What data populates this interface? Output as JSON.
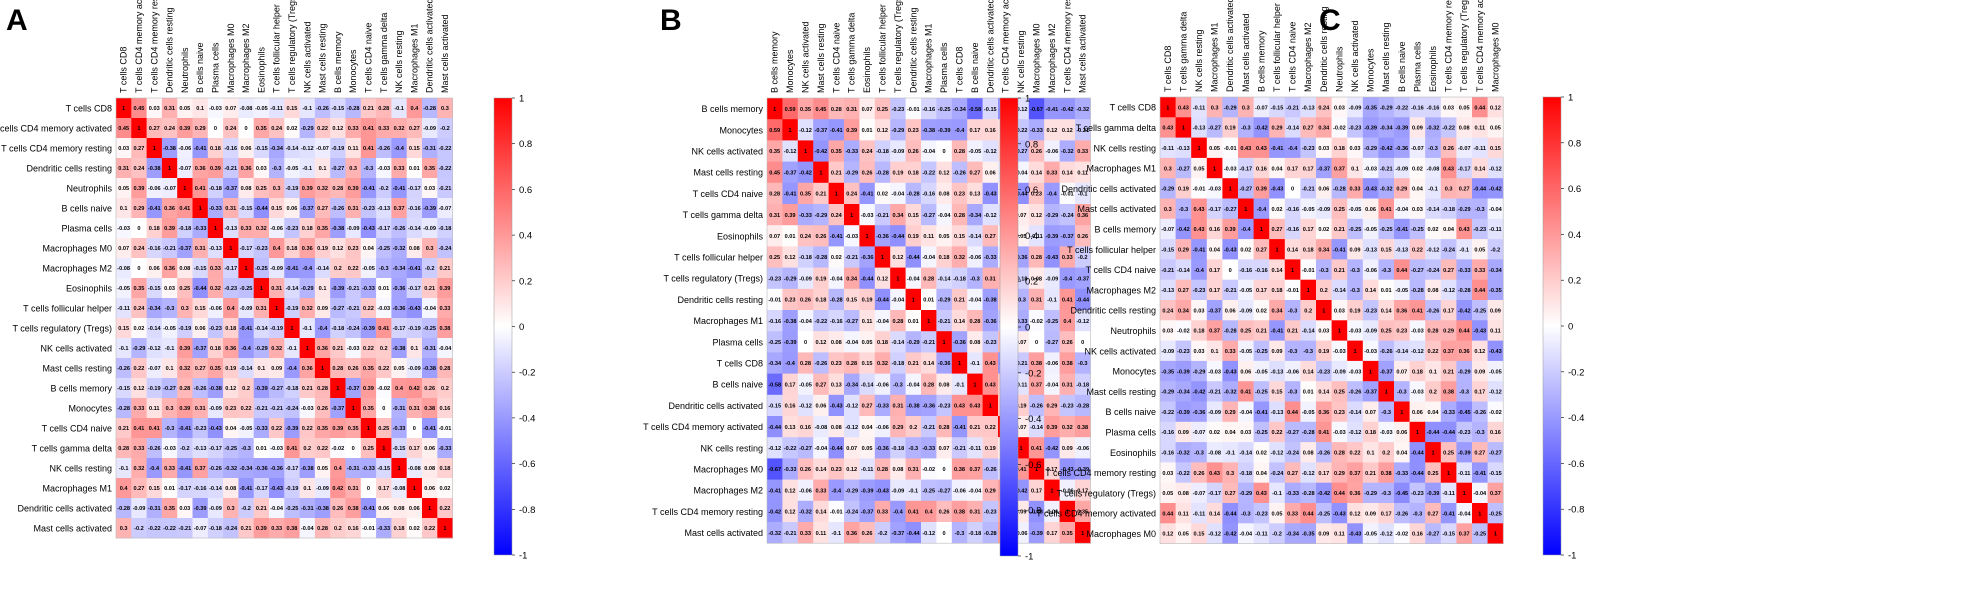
{
  "chart_data": [
    {
      "type": "heatmap",
      "panel_label": "A",
      "rows": [
        "T cells CD8",
        "T cells CD4 memory activated",
        "T cells CD4 memory resting",
        "Dendritic cells resting",
        "Neutrophils",
        "B cells naive",
        "Plasma cells",
        "Macrophages M0",
        "Macrophages M2",
        "Eosinophils",
        "T cells follicular helper",
        "T cells regulatory (Tregs)",
        "NK cells activated",
        "Mast cells resting",
        "B cells memory",
        "Monocytes",
        "T cells CD4 naive",
        "T cells gamma delta",
        "NK cells resting",
        "Macrophages M1",
        "Dendritic cells activated",
        "Mast cells activated"
      ],
      "columns": [
        "T cells CD8",
        "T cells CD4 memory activated",
        "T cells CD4 memory resting",
        "Dendritic cells resting",
        "Neutrophils",
        "B cells naive",
        "Plasma cells",
        "Macrophages M0",
        "Macrophages M2",
        "Eosinophils",
        "T cells follicular helper",
        "T cells regulatory (Tregs)",
        "NK cells activated",
        "Mast cells resting",
        "B cells memory",
        "Monocytes",
        "T cells CD4 naive",
        "T cells gamma delta",
        "NK cells resting",
        "Macrophages M1",
        "Dendritic cells activated",
        "Mast cells activated"
      ],
      "first_row": [
        1,
        0.45,
        0.03,
        0.31,
        0.05,
        0.1,
        -0.03,
        0.07,
        -0.08,
        -0.05,
        -0.11,
        0.15,
        -0.1,
        -0.26,
        -0.15,
        -0.28,
        0.21,
        0.28,
        -0.1,
        0.4,
        -0.28,
        0.3
      ],
      "colorbar": {
        "min": -1,
        "max": 1,
        "ticks": [
          "1",
          "0.8",
          "0.6",
          "0.4",
          "0.2",
          "0",
          "-0.2",
          "-0.4",
          "-0.6",
          "-0.8",
          "-1"
        ]
      }
    },
    {
      "type": "heatmap",
      "panel_label": "B",
      "rows": [
        "B cells memory",
        "Monocytes",
        "NK cells activated",
        "Mast cells resting",
        "T cells CD4 naive",
        "T cells gamma delta",
        "Eosinophils",
        "T cells follicular helper",
        "T cells regulatory (Tregs)",
        "Dendritic cells resting",
        "Macrophages M1",
        "Plasma cells",
        "T cells CD8",
        "B cells naive",
        "Dendritic cells activated",
        "T cells CD4 memory activated",
        "NK cells resting",
        "Macrophages M0",
        "Macrophages M2",
        "T cells CD4 memory resting",
        "Mast cells activated"
      ],
      "columns": [
        "B cells memory",
        "Monocytes",
        "NK cells activated",
        "Mast cells resting",
        "T cells CD4 naive",
        "T cells gamma delta",
        "Eosinophils",
        "T cells follicular helper",
        "T cells regulatory (Tregs)",
        "Dendritic cells resting",
        "Macrophages M1",
        "Plasma cells",
        "T cells CD8",
        "B cells naive",
        "Dendritic cells activated",
        "T cells CD4 memory activated",
        "NK cells resting",
        "Macrophages M0",
        "Macrophages M2",
        "T cells CD4 memory resting",
        "Mast cells activated"
      ],
      "first_row": [
        1,
        0.59,
        0.35,
        0.45,
        0.28,
        0.31,
        0.07,
        0.25,
        -0.23,
        -0.01,
        -0.16,
        -0.25,
        -0.34,
        -0.58,
        -0.15,
        -0.44,
        -0.12,
        -0.67,
        -0.41,
        -0.42,
        -0.32
      ],
      "colorbar": {
        "min": -1,
        "max": 1,
        "ticks": [
          "1",
          "0.8",
          "0.6",
          "0.4",
          "0.2",
          "0",
          "-0.2",
          "-0.4",
          "-0.6",
          "-0.8",
          "-1"
        ]
      }
    },
    {
      "type": "heatmap",
      "panel_label": "C",
      "rows": [
        "T cells CD8",
        "T cells gamma delta",
        "NK cells resting",
        "Macrophages M1",
        "Dendritic cells activated",
        "Mast cells activated",
        "B cells memory",
        "T cells follicular helper",
        "T cells CD4 naive",
        "Macrophages M2",
        "Dendritic cells resting",
        "Neutrophils",
        "NK cells activated",
        "Monocytes",
        "Mast cells resting",
        "B cells naive",
        "Plasma cells",
        "Eosinophils",
        "T cells CD4 memory resting",
        "T cells regulatory (Tregs)",
        "T cells CD4 memory activated",
        "Macrophages M0"
      ],
      "columns": [
        "T cells CD8",
        "T cells gamma delta",
        "NK cells resting",
        "Macrophages M1",
        "Dendritic cells activated",
        "Mast cells activated",
        "B cells memory",
        "T cells follicular helper",
        "T cells CD4 naive",
        "Macrophages M2",
        "Dendritic cells resting",
        "Neutrophils",
        "NK cells activated",
        "Monocytes",
        "Mast cells resting",
        "B cells naive",
        "Plasma cells",
        "Eosinophils",
        "T cells CD4 memory resting",
        "T cells regulatory (Tregs)",
        "T cells CD4 memory activated",
        "Macrophages M0"
      ],
      "first_row": [
        1,
        0.43,
        -0.11,
        0.3,
        -0.29,
        0.3,
        -0.07,
        -0.15,
        -0.21,
        -0.13,
        0.24,
        0.03,
        -0.09,
        -0.35,
        -0.29,
        -0.22,
        -0.16,
        -0.16,
        0.03,
        0.05,
        0.44,
        0.12
      ],
      "colorbar": {
        "min": -1,
        "max": 1,
        "ticks": [
          "1",
          "0.8",
          "0.6",
          "0.4",
          "0.2",
          "0",
          "-0.2",
          "-0.4",
          "-0.6",
          "-0.8",
          "-1"
        ]
      }
    }
  ]
}
